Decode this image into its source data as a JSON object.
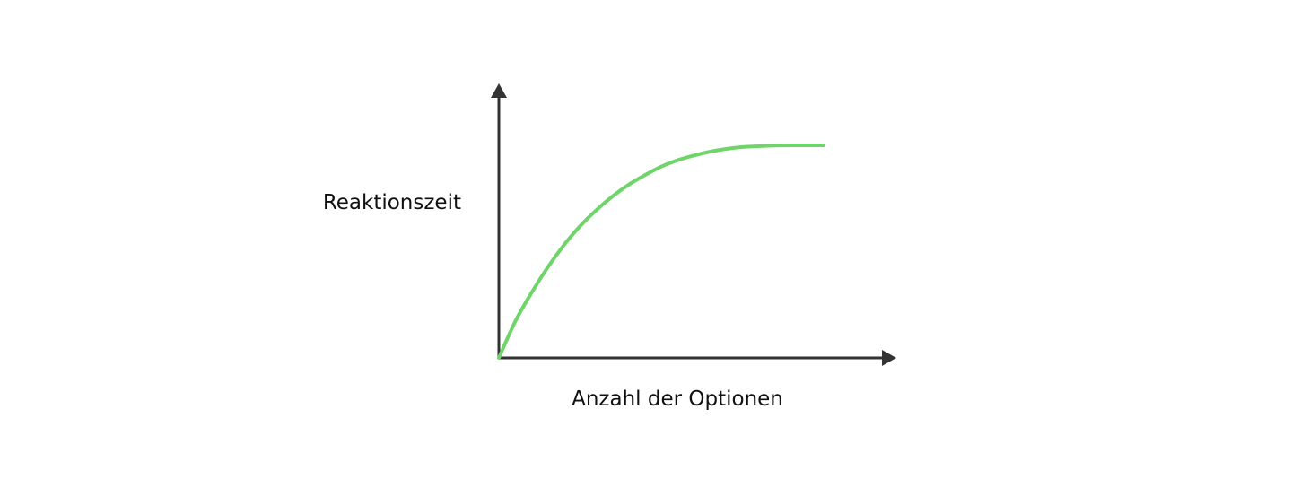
{
  "chart_data": {
    "type": "line",
    "title": "",
    "xlabel": "Anzahl der Optionen",
    "ylabel": "Reaktionszeit",
    "grid": false,
    "legend": "none",
    "axis_ticks": false,
    "series": [
      {
        "color": "#6fd46a",
        "x": [
          0,
          0.05,
          0.1,
          0.15,
          0.2,
          0.25,
          0.3,
          0.35,
          0.4,
          0.45,
          0.5,
          0.55,
          0.6,
          0.65,
          0.7,
          0.75,
          0.8,
          0.85,
          0.9,
          0.95,
          1.0
        ],
        "y": [
          0,
          0.17,
          0.305,
          0.425,
          0.53,
          0.62,
          0.695,
          0.76,
          0.815,
          0.86,
          0.9,
          0.93,
          0.952,
          0.97,
          0.983,
          0.992,
          0.996,
          0.999,
          1.0,
          1.0,
          1.0
        ]
      }
    ],
    "xlim": [
      0,
      1.22
    ],
    "ylim": [
      0,
      1.6
    ],
    "axis_color": "#333333"
  }
}
